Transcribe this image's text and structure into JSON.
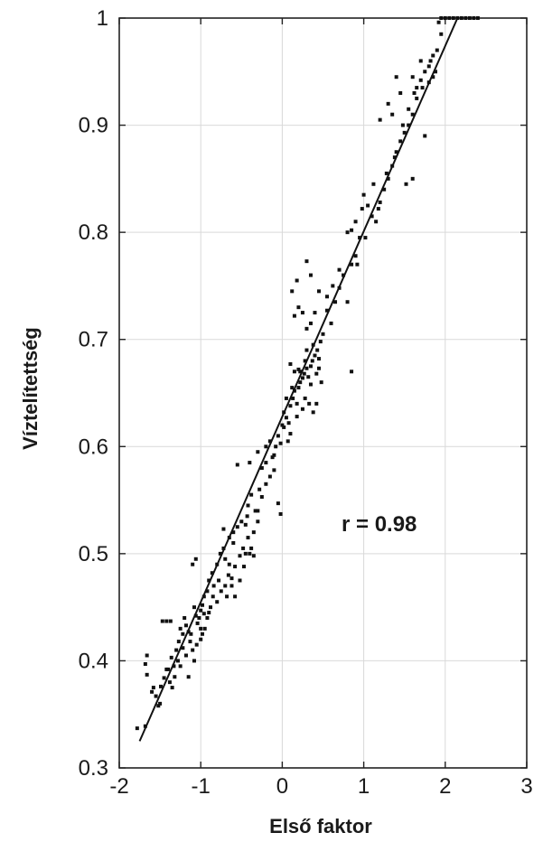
{
  "chart_data": {
    "type": "scatter",
    "xlabel": "Első faktor",
    "ylabel": "Víztelítettség",
    "xlim": [
      -2,
      3
    ],
    "ylim": [
      0.3,
      1
    ],
    "xticks": [
      -2,
      -1,
      0,
      1,
      2,
      3
    ],
    "yticks": [
      0.3,
      0.4,
      0.5,
      0.6,
      0.7,
      0.8,
      0.9,
      1
    ],
    "xtick_labels": [
      "-2",
      "-1",
      "0",
      "1",
      "2",
      "3"
    ],
    "ytick_labels": [
      "0.3",
      "0.4",
      "0.5",
      "0.6",
      "0.7",
      "0.8",
      "0.9",
      "1"
    ],
    "grid": true,
    "annotation": "r = 0.98",
    "regression_line": {
      "x": [
        -1.75,
        2.15
      ],
      "y": [
        0.325,
        1.0
      ]
    },
    "point_color": "#111111",
    "line_color": "#111111",
    "points": [
      [
        -1.78,
        0.337
      ],
      [
        -1.68,
        0.339
      ],
      [
        -1.66,
        0.387
      ],
      [
        -1.68,
        0.397
      ],
      [
        -1.66,
        0.405
      ],
      [
        -1.6,
        0.371
      ],
      [
        -1.55,
        0.367
      ],
      [
        -1.52,
        0.358
      ],
      [
        -1.49,
        0.376
      ],
      [
        -1.45,
        0.384
      ],
      [
        -1.4,
        0.392
      ],
      [
        -1.47,
        0.437
      ],
      [
        -1.42,
        0.437
      ],
      [
        -1.37,
        0.437
      ],
      [
        -1.36,
        0.403
      ],
      [
        -1.33,
        0.395
      ],
      [
        -1.3,
        0.41
      ],
      [
        -1.27,
        0.418
      ],
      [
        -1.25,
        0.43
      ],
      [
        -1.22,
        0.425
      ],
      [
        -1.2,
        0.44
      ],
      [
        -1.18,
        0.433
      ],
      [
        -1.15,
        0.427
      ],
      [
        -1.13,
        0.418
      ],
      [
        -1.1,
        0.41
      ],
      [
        -1.08,
        0.45
      ],
      [
        -1.06,
        0.442
      ],
      [
        -1.04,
        0.435
      ],
      [
        -1.02,
        0.44
      ],
      [
        -1.0,
        0.447
      ],
      [
        -0.98,
        0.452
      ],
      [
        -0.96,
        0.444
      ],
      [
        -1.1,
        0.49
      ],
      [
        -1.06,
        0.495
      ],
      [
        -0.96,
        0.46
      ],
      [
        -0.92,
        0.465
      ],
      [
        -0.9,
        0.475
      ],
      [
        -0.86,
        0.482
      ],
      [
        -0.84,
        0.47
      ],
      [
        -0.8,
        0.49
      ],
      [
        -0.76,
        0.5
      ],
      [
        -0.72,
        0.505
      ],
      [
        -0.7,
        0.495
      ],
      [
        -0.66,
        0.48
      ],
      [
        -0.62,
        0.477
      ],
      [
        -0.58,
        0.488
      ],
      [
        -0.72,
        0.523
      ],
      [
        -0.65,
        0.515
      ],
      [
        -0.6,
        0.51
      ],
      [
        -0.55,
        0.525
      ],
      [
        -0.5,
        0.53
      ],
      [
        -0.45,
        0.527
      ],
      [
        -0.43,
        0.535
      ],
      [
        -0.4,
        0.5
      ],
      [
        -0.42,
        0.545
      ],
      [
        -0.38,
        0.555
      ],
      [
        -0.33,
        0.54
      ],
      [
        -0.28,
        0.56
      ],
      [
        -0.25,
        0.553
      ],
      [
        -0.2,
        0.565
      ],
      [
        -0.15,
        0.572
      ],
      [
        -0.1,
        0.578
      ],
      [
        -0.05,
        0.547
      ],
      [
        -0.02,
        0.537
      ],
      [
        -0.55,
        0.583
      ],
      [
        -0.4,
        0.585
      ],
      [
        -0.3,
        0.595
      ],
      [
        -0.2,
        0.6
      ],
      [
        -0.15,
        0.605
      ],
      [
        -0.1,
        0.592
      ],
      [
        -0.05,
        0.61
      ],
      [
        0.0,
        0.62
      ],
      [
        0.02,
        0.632
      ],
      [
        0.05,
        0.627
      ],
      [
        0.08,
        0.622
      ],
      [
        0.1,
        0.638
      ],
      [
        0.13,
        0.645
      ],
      [
        0.15,
        0.652
      ],
      [
        0.18,
        0.64
      ],
      [
        0.2,
        0.655
      ],
      [
        0.22,
        0.66
      ],
      [
        0.25,
        0.664
      ],
      [
        0.27,
        0.668
      ],
      [
        0.3,
        0.673
      ],
      [
        0.32,
        0.665
      ],
      [
        0.35,
        0.675
      ],
      [
        0.37,
        0.68
      ],
      [
        0.4,
        0.685
      ],
      [
        0.43,
        0.69
      ],
      [
        0.45,
        0.682
      ],
      [
        0.47,
        0.698
      ],
      [
        0.5,
        0.705
      ],
      [
        0.1,
        0.677
      ],
      [
        0.15,
        0.67
      ],
      [
        0.2,
        0.672
      ],
      [
        0.3,
        0.71
      ],
      [
        0.35,
        0.715
      ],
      [
        0.25,
        0.725
      ],
      [
        0.2,
        0.73
      ],
      [
        0.15,
        0.722
      ],
      [
        0.12,
        0.745
      ],
      [
        0.18,
        0.755
      ],
      [
        0.3,
        0.773
      ],
      [
        0.35,
        0.76
      ],
      [
        0.4,
        0.725
      ],
      [
        0.45,
        0.745
      ],
      [
        0.55,
        0.727
      ],
      [
        0.6,
        0.715
      ],
      [
        0.65,
        0.735
      ],
      [
        0.7,
        0.748
      ],
      [
        0.75,
        0.76
      ],
      [
        0.8,
        0.735
      ],
      [
        0.85,
        0.77
      ],
      [
        0.9,
        0.778
      ],
      [
        0.95,
        0.795
      ],
      [
        0.8,
        0.8
      ],
      [
        0.85,
        0.802
      ],
      [
        0.9,
        0.81
      ],
      [
        0.98,
        0.822
      ],
      [
        1.0,
        0.835
      ],
      [
        1.05,
        0.825
      ],
      [
        1.12,
        0.845
      ],
      [
        1.15,
        0.81
      ],
      [
        1.18,
        0.822
      ],
      [
        1.2,
        0.828
      ],
      [
        1.25,
        0.84
      ],
      [
        1.3,
        0.85
      ],
      [
        1.35,
        0.862
      ],
      [
        1.4,
        0.875
      ],
      [
        1.45,
        0.885
      ],
      [
        1.5,
        0.893
      ],
      [
        1.55,
        0.9
      ],
      [
        1.6,
        0.91
      ],
      [
        1.62,
        0.93
      ],
      [
        1.65,
        0.935
      ],
      [
        1.7,
        0.942
      ],
      [
        1.75,
        0.95
      ],
      [
        1.8,
        0.955
      ],
      [
        1.82,
        0.96
      ],
      [
        1.85,
        0.945
      ],
      [
        1.85,
        0.965
      ],
      [
        1.88,
        0.95
      ],
      [
        1.9,
        0.97
      ],
      [
        1.95,
        0.985
      ],
      [
        1.2,
        0.905
      ],
      [
        1.3,
        0.92
      ],
      [
        1.35,
        0.91
      ],
      [
        1.4,
        0.945
      ],
      [
        1.45,
        0.93
      ],
      [
        1.6,
        0.945
      ],
      [
        1.7,
        0.96
      ],
      [
        1.75,
        0.89
      ],
      [
        1.6,
        0.85
      ],
      [
        1.52,
        0.845
      ],
      [
        1.95,
        1.0
      ],
      [
        2.0,
        1.0
      ],
      [
        2.05,
        1.0
      ],
      [
        2.1,
        1.0
      ],
      [
        2.15,
        1.0
      ],
      [
        2.2,
        1.0
      ],
      [
        2.25,
        1.0
      ],
      [
        2.3,
        1.0
      ],
      [
        2.35,
        1.0
      ],
      [
        2.4,
        1.0
      ],
      [
        1.92,
        0.996
      ],
      [
        0.3,
        0.69
      ],
      [
        0.42,
        0.668
      ],
      [
        0.48,
        0.66
      ],
      [
        0.35,
        0.658
      ],
      [
        0.45,
        0.673
      ],
      [
        0.02,
        0.618
      ],
      [
        0.07,
        0.605
      ],
      [
        0.1,
        0.612
      ],
      [
        0.18,
        0.628
      ],
      [
        0.25,
        0.635
      ],
      [
        0.28,
        0.645
      ],
      [
        0.33,
        0.64
      ],
      [
        0.38,
        0.632
      ],
      [
        0.42,
        0.64
      ],
      [
        0.85,
        0.67
      ],
      [
        -0.3,
        0.53
      ],
      [
        -0.35,
        0.52
      ],
      [
        -0.42,
        0.515
      ],
      [
        -0.48,
        0.505
      ],
      [
        -0.52,
        0.498
      ],
      [
        -0.6,
        0.52
      ],
      [
        -0.65,
        0.49
      ],
      [
        -0.7,
        0.47
      ],
      [
        -0.75,
        0.465
      ],
      [
        -0.8,
        0.455
      ],
      [
        -0.88,
        0.45
      ],
      [
        -0.92,
        0.44
      ],
      [
        -0.95,
        0.43
      ],
      [
        -1.0,
        0.42
      ],
      [
        -1.05,
        0.415
      ],
      [
        -1.12,
        0.425
      ],
      [
        -1.18,
        0.405
      ],
      [
        -1.22,
        0.412
      ],
      [
        -1.28,
        0.4
      ],
      [
        -1.32,
        0.385
      ],
      [
        -1.35,
        0.375
      ],
      [
        -1.38,
        0.38
      ],
      [
        -1.42,
        0.392
      ],
      [
        -1.5,
        0.36
      ],
      [
        -1.58,
        0.375
      ],
      [
        -1.25,
        0.395
      ],
      [
        -1.15,
        0.385
      ],
      [
        -1.08,
        0.4
      ],
      [
        -1.0,
        0.43
      ],
      [
        -0.98,
        0.425
      ],
      [
        -0.9,
        0.445
      ],
      [
        -0.85,
        0.46
      ],
      [
        -0.78,
        0.475
      ],
      [
        -0.68,
        0.46
      ],
      [
        -0.62,
        0.47
      ],
      [
        -0.58,
        0.46
      ],
      [
        -0.52,
        0.475
      ],
      [
        -0.47,
        0.488
      ],
      [
        -0.45,
        0.5
      ],
      [
        -0.38,
        0.505
      ],
      [
        -0.35,
        0.498
      ],
      [
        -0.3,
        0.54
      ],
      [
        -0.25,
        0.58
      ],
      [
        -0.2,
        0.585
      ],
      [
        -0.12,
        0.59
      ],
      [
        -0.08,
        0.6
      ],
      [
        -0.02,
        0.603
      ],
      [
        0.05,
        0.645
      ],
      [
        0.12,
        0.655
      ],
      [
        0.22,
        0.67
      ],
      [
        0.28,
        0.68
      ],
      [
        0.38,
        0.695
      ],
      [
        0.55,
        0.74
      ],
      [
        0.62,
        0.75
      ],
      [
        0.7,
        0.765
      ],
      [
        0.92,
        0.77
      ],
      [
        1.02,
        0.795
      ],
      [
        1.1,
        0.815
      ],
      [
        1.28,
        0.855
      ],
      [
        1.38,
        0.87
      ],
      [
        1.48,
        0.9
      ],
      [
        1.55,
        0.915
      ],
      [
        1.65,
        0.925
      ],
      [
        1.72,
        0.935
      ],
      [
        1.8,
        0.94
      ]
    ]
  }
}
